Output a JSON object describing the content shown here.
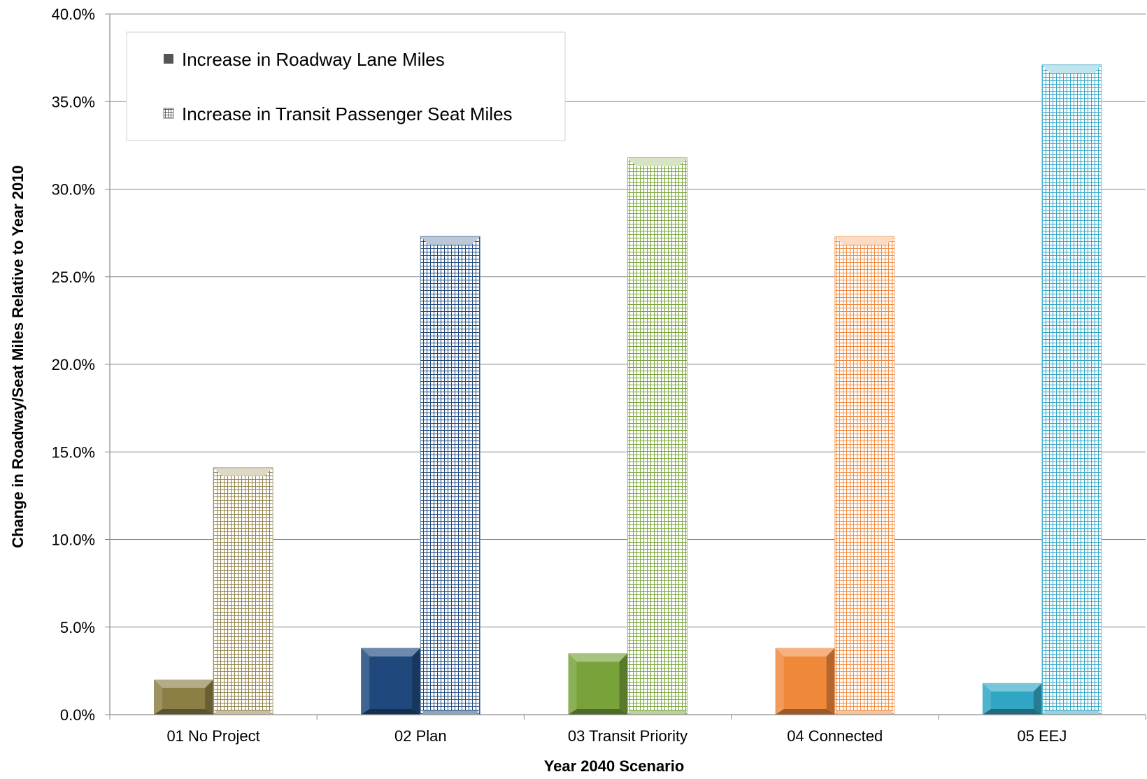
{
  "chart_data": {
    "type": "bar",
    "title": "",
    "xlabel": "Year 2040 Scenario",
    "ylabel": "Change in Roadway/Seat Miles Relative to Year 2010",
    "ylim": [
      0,
      40
    ],
    "yticks": [
      0,
      5,
      10,
      15,
      20,
      25,
      30,
      35,
      40
    ],
    "ytick_labels": [
      "0.0%",
      "5.0%",
      "10.0%",
      "15.0%",
      "20.0%",
      "25.0%",
      "30.0%",
      "35.0%",
      "40.0%"
    ],
    "categories": [
      "01 No Project",
      "02 Plan",
      "03 Transit Priority",
      "04 Connected",
      "05 EEJ"
    ],
    "series": [
      {
        "name": "Increase in Roadway Lane Miles",
        "values": [
          2.0,
          3.8,
          3.5,
          3.8,
          1.8
        ],
        "pattern": "solid"
      },
      {
        "name": "Increase in Transit Passenger Seat Miles",
        "values": [
          14.1,
          27.3,
          31.8,
          27.3,
          37.1
        ],
        "pattern": "grid"
      }
    ],
    "category_colors": [
      "#8c7f45",
      "#1f497d",
      "#77a33a",
      "#f0883a",
      "#31a5c4"
    ],
    "legend": {
      "placement": "top-left"
    },
    "grid": true
  }
}
